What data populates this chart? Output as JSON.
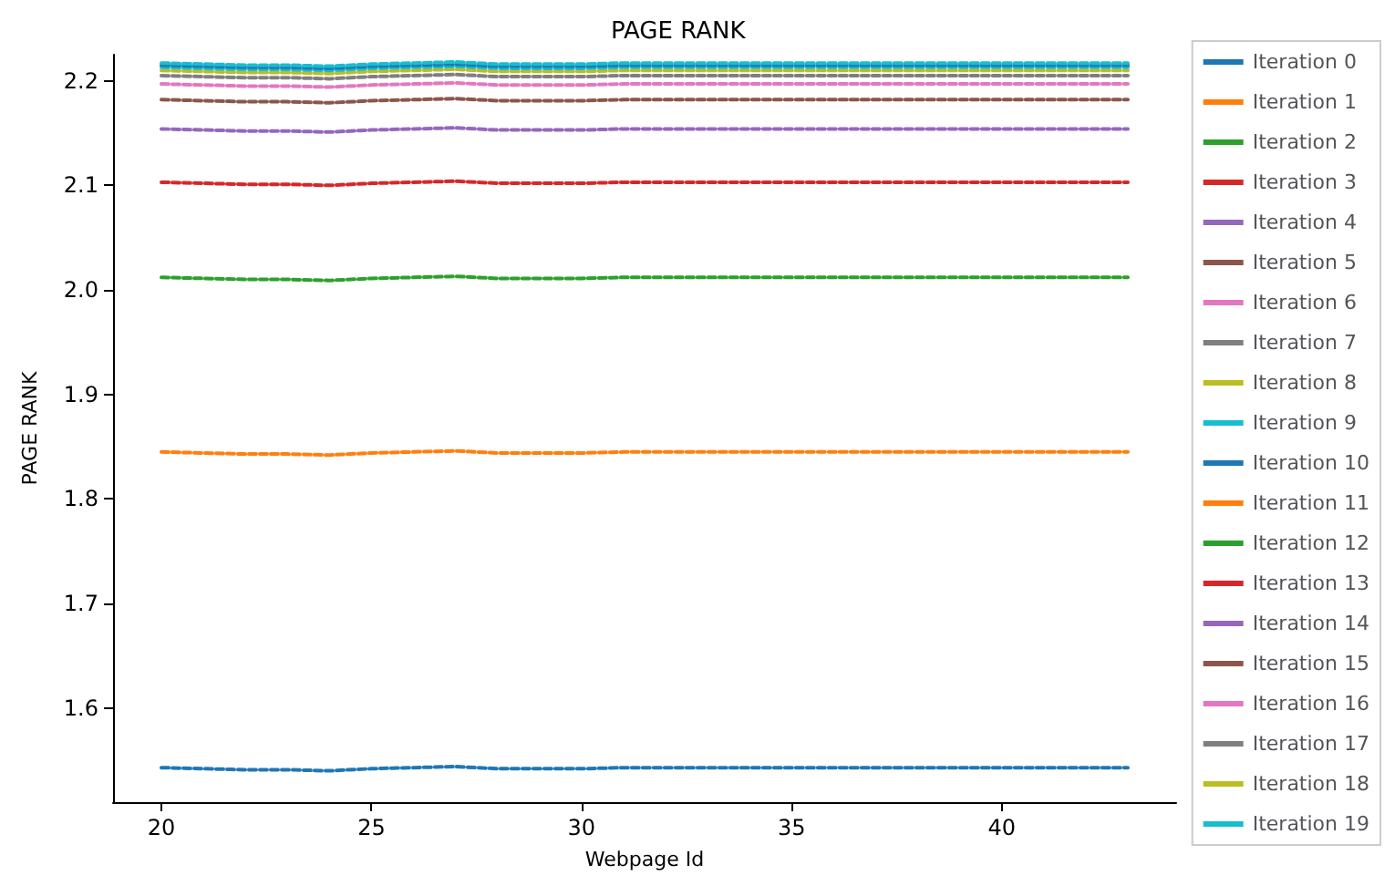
{
  "chart_data": {
    "type": "line",
    "title": "PAGE RANK",
    "xlabel": "Webpage Id",
    "ylabel": "PAGE RANK",
    "x": [
      20,
      21,
      22,
      23,
      24,
      25,
      26,
      27,
      28,
      29,
      30,
      31,
      32,
      33,
      34,
      35,
      36,
      37,
      38,
      39,
      40,
      41,
      42,
      43
    ],
    "xlim": [
      18.85,
      44.15
    ],
    "xticks": [
      20,
      25,
      30,
      35,
      40
    ],
    "ylim": [
      1.51,
      2.225
    ],
    "yticks": [
      1.6,
      1.7,
      1.8,
      1.9,
      {
        "value": 2.0,
        "label": "2.0"
      },
      2.1,
      2.2
    ],
    "grid": false,
    "legend": "right",
    "line_style": "dashed",
    "marker": "none",
    "series": [
      {
        "name": "Iteration 0",
        "color": "#1f77b4",
        "values": [
          1.543,
          1.542,
          1.541,
          1.541,
          1.54,
          1.542,
          1.543,
          1.544,
          1.542,
          1.542,
          1.542,
          1.543,
          1.543,
          1.543,
          1.543,
          1.543,
          1.543,
          1.543,
          1.543,
          1.543,
          1.543,
          1.543,
          1.543,
          1.543
        ]
      },
      {
        "name": "Iteration 1",
        "color": "#ff7f0e",
        "values": [
          1.845,
          1.844,
          1.843,
          1.843,
          1.842,
          1.844,
          1.845,
          1.846,
          1.844,
          1.844,
          1.844,
          1.845,
          1.845,
          1.845,
          1.845,
          1.845,
          1.845,
          1.845,
          1.845,
          1.845,
          1.845,
          1.845,
          1.845,
          1.845
        ]
      },
      {
        "name": "Iteration 2",
        "color": "#2ca02c",
        "values": [
          2.012,
          2.011,
          2.01,
          2.01,
          2.009,
          2.011,
          2.012,
          2.013,
          2.011,
          2.011,
          2.011,
          2.012,
          2.012,
          2.012,
          2.012,
          2.012,
          2.012,
          2.012,
          2.012,
          2.012,
          2.012,
          2.012,
          2.012,
          2.012
        ]
      },
      {
        "name": "Iteration 3",
        "color": "#d62728",
        "values": [
          2.103,
          2.102,
          2.101,
          2.101,
          2.1,
          2.102,
          2.103,
          2.104,
          2.102,
          2.102,
          2.102,
          2.103,
          2.103,
          2.103,
          2.103,
          2.103,
          2.103,
          2.103,
          2.103,
          2.103,
          2.103,
          2.103,
          2.103,
          2.103
        ]
      },
      {
        "name": "Iteration 4",
        "color": "#9467bd",
        "values": [
          2.154,
          2.153,
          2.152,
          2.152,
          2.151,
          2.153,
          2.154,
          2.155,
          2.153,
          2.153,
          2.153,
          2.154,
          2.154,
          2.154,
          2.154,
          2.154,
          2.154,
          2.154,
          2.154,
          2.154,
          2.154,
          2.154,
          2.154,
          2.154
        ]
      },
      {
        "name": "Iteration 5",
        "color": "#8c564b",
        "values": [
          2.182,
          2.181,
          2.18,
          2.18,
          2.179,
          2.181,
          2.182,
          2.183,
          2.181,
          2.181,
          2.181,
          2.182,
          2.182,
          2.182,
          2.182,
          2.182,
          2.182,
          2.182,
          2.182,
          2.182,
          2.182,
          2.182,
          2.182,
          2.182
        ]
      },
      {
        "name": "Iteration 6",
        "color": "#e377c2",
        "values": [
          2.197,
          2.196,
          2.195,
          2.195,
          2.194,
          2.196,
          2.197,
          2.198,
          2.196,
          2.196,
          2.196,
          2.197,
          2.197,
          2.197,
          2.197,
          2.197,
          2.197,
          2.197,
          2.197,
          2.197,
          2.197,
          2.197,
          2.197,
          2.197
        ]
      },
      {
        "name": "Iteration 7",
        "color": "#7f7f7f",
        "values": [
          2.205,
          2.204,
          2.203,
          2.203,
          2.202,
          2.204,
          2.205,
          2.206,
          2.204,
          2.204,
          2.204,
          2.205,
          2.205,
          2.205,
          2.205,
          2.205,
          2.205,
          2.205,
          2.205,
          2.205,
          2.205,
          2.205,
          2.205,
          2.205
        ]
      },
      {
        "name": "Iteration 8",
        "color": "#bcbd22",
        "values": [
          2.21,
          2.209,
          2.208,
          2.208,
          2.207,
          2.209,
          2.21,
          2.211,
          2.209,
          2.209,
          2.209,
          2.21,
          2.21,
          2.21,
          2.21,
          2.21,
          2.21,
          2.21,
          2.21,
          2.21,
          2.21,
          2.21,
          2.21,
          2.21
        ]
      },
      {
        "name": "Iteration 9",
        "color": "#17becf",
        "values": [
          2.213,
          2.212,
          2.211,
          2.211,
          2.21,
          2.212,
          2.213,
          2.214,
          2.212,
          2.212,
          2.212,
          2.213,
          2.213,
          2.213,
          2.213,
          2.213,
          2.213,
          2.213,
          2.213,
          2.213,
          2.213,
          2.213,
          2.213,
          2.213
        ]
      },
      {
        "name": "Iteration 10",
        "color": "#1f77b4",
        "values": [
          2.215,
          2.214,
          2.213,
          2.213,
          2.212,
          2.214,
          2.215,
          2.216,
          2.214,
          2.214,
          2.214,
          2.215,
          2.215,
          2.215,
          2.215,
          2.215,
          2.215,
          2.215,
          2.215,
          2.215,
          2.215,
          2.215,
          2.215,
          2.215
        ]
      },
      {
        "name": "Iteration 11",
        "color": "#ff7f0e",
        "values": [
          null,
          null,
          null,
          null,
          null,
          null,
          null,
          null,
          null,
          null,
          null,
          null,
          null,
          null,
          null,
          null,
          null,
          null,
          null,
          null,
          null,
          null,
          null,
          null
        ]
      },
      {
        "name": "Iteration 12",
        "color": "#2ca02c",
        "values": [
          null,
          null,
          null,
          null,
          null,
          null,
          null,
          null,
          null,
          null,
          null,
          null,
          null,
          null,
          null,
          null,
          null,
          null,
          null,
          null,
          null,
          null,
          null,
          null
        ]
      },
      {
        "name": "Iteration 13",
        "color": "#d62728",
        "values": [
          null,
          null,
          null,
          null,
          null,
          null,
          null,
          null,
          null,
          null,
          null,
          null,
          null,
          null,
          null,
          null,
          null,
          null,
          null,
          null,
          null,
          null,
          null,
          null
        ]
      },
      {
        "name": "Iteration 14",
        "color": "#9467bd",
        "values": [
          null,
          null,
          null,
          null,
          null,
          null,
          null,
          null,
          null,
          null,
          null,
          null,
          null,
          null,
          null,
          null,
          null,
          null,
          null,
          null,
          null,
          null,
          null,
          null
        ]
      },
      {
        "name": "Iteration 15",
        "color": "#8c564b",
        "values": [
          null,
          null,
          null,
          null,
          null,
          null,
          null,
          null,
          null,
          null,
          null,
          null,
          null,
          null,
          null,
          null,
          null,
          null,
          null,
          null,
          null,
          null,
          null,
          null
        ]
      },
      {
        "name": "Iteration 16",
        "color": "#e377c2",
        "values": [
          null,
          null,
          null,
          null,
          null,
          null,
          null,
          null,
          null,
          null,
          null,
          null,
          null,
          null,
          null,
          null,
          null,
          null,
          null,
          null,
          null,
          null,
          null,
          null
        ]
      },
      {
        "name": "Iteration 17",
        "color": "#7f7f7f",
        "values": [
          null,
          null,
          null,
          null,
          null,
          null,
          null,
          null,
          null,
          null,
          null,
          null,
          null,
          null,
          null,
          null,
          null,
          null,
          null,
          null,
          null,
          null,
          null,
          null
        ]
      },
      {
        "name": "Iteration 18",
        "color": "#bcbd22",
        "values": [
          null,
          null,
          null,
          null,
          null,
          null,
          null,
          null,
          null,
          null,
          null,
          null,
          null,
          null,
          null,
          null,
          null,
          null,
          null,
          null,
          null,
          null,
          null,
          null
        ]
      },
      {
        "name": "Iteration 19",
        "color": "#17becf",
        "values": [
          2.217,
          2.216,
          2.215,
          2.215,
          2.214,
          2.216,
          2.217,
          2.218,
          2.216,
          2.216,
          2.216,
          2.217,
          2.217,
          2.217,
          2.217,
          2.217,
          2.217,
          2.217,
          2.217,
          2.217,
          2.217,
          2.217,
          2.217,
          2.217
        ]
      }
    ]
  }
}
